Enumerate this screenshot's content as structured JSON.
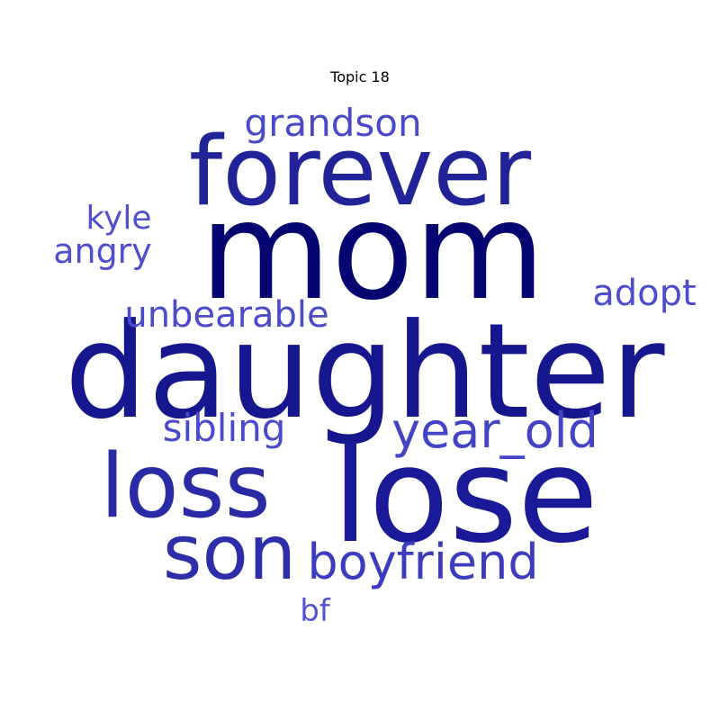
{
  "title": "Topic 18",
  "words": [
    {
      "text": "mom",
      "color": "#050572"
    },
    {
      "text": "daughter",
      "color": "#16168f"
    },
    {
      "text": "lose",
      "color": "#1a1a98"
    },
    {
      "text": "forever",
      "color": "#232399"
    },
    {
      "text": "loss",
      "color": "#2a2aa6"
    },
    {
      "text": "son",
      "color": "#2e2eaa"
    },
    {
      "text": "boyfriend",
      "color": "#3c3cbf"
    },
    {
      "text": "year_old",
      "color": "#4343c8"
    },
    {
      "text": "grandson",
      "color": "#4a4ac8"
    },
    {
      "text": "sibling",
      "color": "#4a4acc"
    },
    {
      "text": "unbearable",
      "color": "#4b4bcc"
    },
    {
      "text": "adopt",
      "color": "#4c4ccd"
    },
    {
      "text": "angry",
      "color": "#4e4ecf"
    },
    {
      "text": "kyle",
      "color": "#5050d0"
    },
    {
      "text": "bf",
      "color": "#5252d2"
    }
  ]
}
